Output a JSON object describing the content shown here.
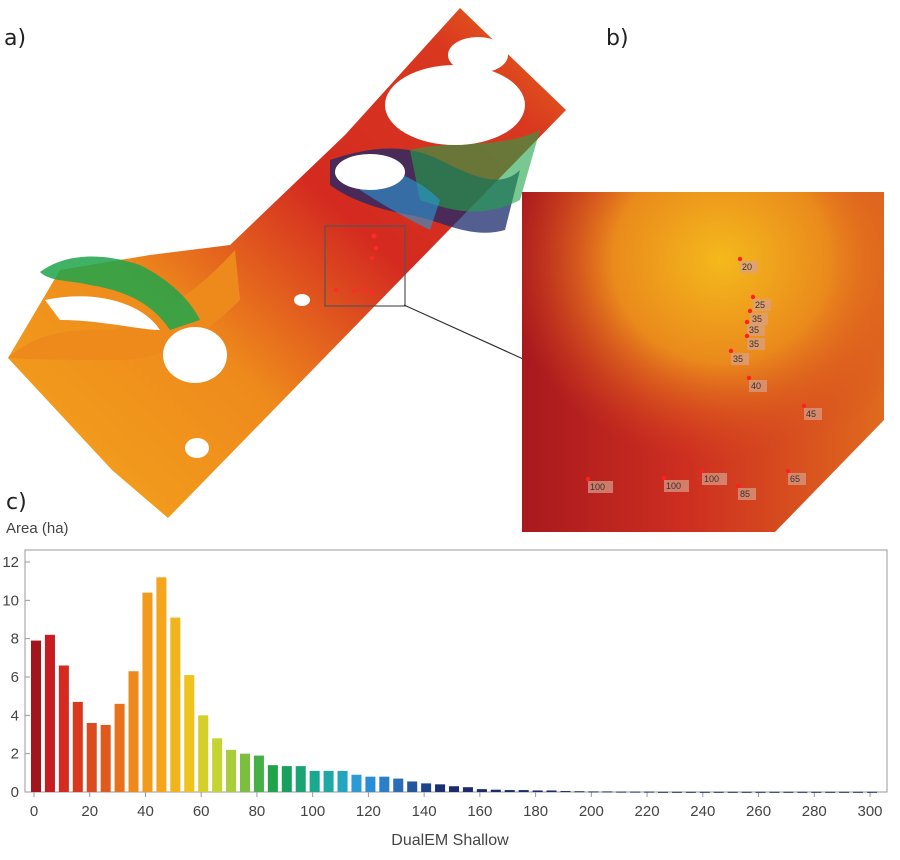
{
  "panels": {
    "a": "a)",
    "b": "b)",
    "c": "c)"
  },
  "inset_labels": [
    {
      "text": "20"
    },
    {
      "text": "25"
    },
    {
      "text": "35"
    },
    {
      "text": "35"
    },
    {
      "text": "35"
    },
    {
      "text": "35"
    },
    {
      "text": "40"
    },
    {
      "text": "45"
    },
    {
      "text": "100"
    },
    {
      "text": "100"
    },
    {
      "text": "100"
    },
    {
      "text": "85"
    },
    {
      "text": "65"
    }
  ],
  "colors": {
    "red_dark": "#a3151c",
    "red": "#d42a20",
    "orange": "#e8711c",
    "amber": "#f4a51c",
    "yellow_green": "#c6d433",
    "green": "#1fa44a",
    "teal": "#1aa88f",
    "cyan": "#2a9bd7",
    "navy": "#1a2a6b"
  },
  "chart_data": {
    "type": "bar",
    "xlabel": "DualEM Shallow",
    "ylabel": "Area (ha)",
    "xlim": [
      0,
      305
    ],
    "ylim": [
      0,
      12
    ],
    "xticks": [
      0,
      20,
      40,
      60,
      80,
      100,
      120,
      140,
      160,
      180,
      200,
      220,
      240,
      260,
      280,
      300
    ],
    "yticks": [
      0,
      2,
      4,
      6,
      8,
      10,
      12
    ],
    "bin_width": 5,
    "x": [
      0,
      5,
      10,
      15,
      20,
      25,
      30,
      35,
      40,
      45,
      50,
      55,
      60,
      65,
      70,
      75,
      80,
      85,
      90,
      95,
      100,
      105,
      110,
      115,
      120,
      125,
      130,
      135,
      140,
      145,
      150,
      155,
      160,
      165,
      170,
      175,
      180,
      185,
      190,
      195,
      200,
      205,
      210,
      215,
      220,
      225,
      230,
      235,
      240,
      245,
      250,
      255,
      260,
      265,
      270,
      275,
      280,
      285,
      290,
      295,
      300
    ],
    "values": [
      7.9,
      8.2,
      6.6,
      4.7,
      3.6,
      3.5,
      4.6,
      6.3,
      10.4,
      11.2,
      9.1,
      6.1,
      4.0,
      2.8,
      2.2,
      2.0,
      1.9,
      1.4,
      1.35,
      1.35,
      1.1,
      1.1,
      1.1,
      0.9,
      0.8,
      0.8,
      0.7,
      0.55,
      0.45,
      0.4,
      0.3,
      0.25,
      0.15,
      0.12,
      0.1,
      0.1,
      0.08,
      0.08,
      0.05,
      0.04,
      0.03,
      0.03,
      0.02,
      0.02,
      0.02,
      0.01,
      0.01,
      0.01,
      0.01,
      0.01,
      0.01,
      0.01,
      0.01,
      0.01,
      0.01,
      0.01,
      0.01,
      0.01,
      0.01,
      0.01,
      0.01
    ],
    "grid": false
  }
}
